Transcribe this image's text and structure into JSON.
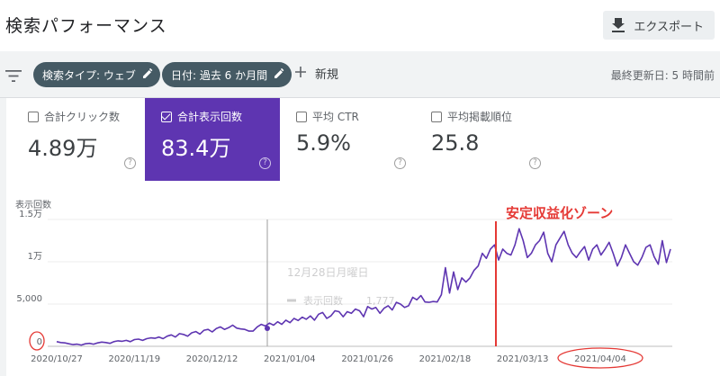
{
  "header": {
    "title": "検索パフォーマンス",
    "export_label": "エクスポート"
  },
  "filterbar": {
    "chips": [
      {
        "label": "検索タイプ: ウェブ"
      },
      {
        "label": "日付: 過去 6 か月間"
      }
    ],
    "new_label": "新規",
    "updated": "最終更新日: 5 時間前"
  },
  "metrics": [
    {
      "label": "合計クリック数",
      "value": "4.89万",
      "checked": false
    },
    {
      "label": "合計表示回数",
      "value": "83.4万",
      "checked": true
    },
    {
      "label": "平均 CTR",
      "value": "5.9%",
      "checked": false
    },
    {
      "label": "平均掲載順位",
      "value": "25.8",
      "checked": false
    }
  ],
  "tooltip": {
    "date": "12月28日月曜日",
    "series": "表示回数",
    "value": "1,777"
  },
  "annotation": "安定収益化ゾーン",
  "chart_data": {
    "type": "line",
    "ylabel": "表示回数",
    "yticks": [
      {
        "value": 0,
        "label": "0"
      },
      {
        "value": 5000,
        "label": "5,000"
      },
      {
        "value": 10000,
        "label": "1万"
      },
      {
        "value": 15000,
        "label": "1.5万"
      }
    ],
    "ylim": [
      0,
      15000
    ],
    "xticks": [
      "2020/10/27",
      "2020/11/19",
      "2020/12/12",
      "2021/01/04",
      "2021/01/26",
      "2021/02/18",
      "2021/03/13",
      "2021/04/04"
    ],
    "grid": true,
    "color": "#5e35b1",
    "series": [
      {
        "values": [
          550,
          450,
          400,
          300,
          200,
          250,
          150,
          300,
          350,
          250,
          400,
          500,
          450,
          350,
          550,
          650,
          600,
          700,
          550,
          800,
          850,
          700,
          900,
          1000,
          950,
          1100,
          900,
          1200,
          1350,
          1100,
          1500,
          1400,
          1200,
          1600,
          1750,
          1450,
          1900,
          2000,
          1700,
          2100,
          2300,
          2000,
          2200,
          2500,
          2150,
          2050,
          2000,
          1800,
          1800,
          2300,
          2600,
          2400,
          2750,
          2500,
          2900,
          2600,
          3100,
          2800,
          3300,
          3050,
          3450,
          3200,
          3600,
          3100,
          3800,
          4000,
          3300,
          3600,
          4200,
          4100,
          3500,
          4100,
          3900,
          4400,
          4200,
          3500,
          4700,
          4400,
          4600,
          3900,
          4500,
          4800,
          4300,
          5200,
          5000,
          4600,
          4800,
          5800,
          5500,
          6000,
          5250,
          5200,
          5300,
          5250,
          6100,
          9300,
          6300,
          8800,
          6700,
          8100,
          7600,
          8100,
          9000,
          9500,
          11000,
          10400,
          11500,
          12000,
          10200,
          11500,
          11000,
          10800,
          12000,
          13900,
          12500,
          10500,
          11000,
          12000,
          12500,
          13500,
          11000,
          10000,
          12000,
          12800,
          13600,
          12000,
          11000,
          10500,
          11200,
          11800,
          10200,
          11500,
          12000,
          10800,
          11500,
          12300,
          11000,
          9500,
          10500,
          12000,
          11000,
          10000,
          9600,
          10500,
          11700,
          12000,
          10600,
          9700,
          12500,
          9900,
          11500
        ]
      }
    ]
  }
}
